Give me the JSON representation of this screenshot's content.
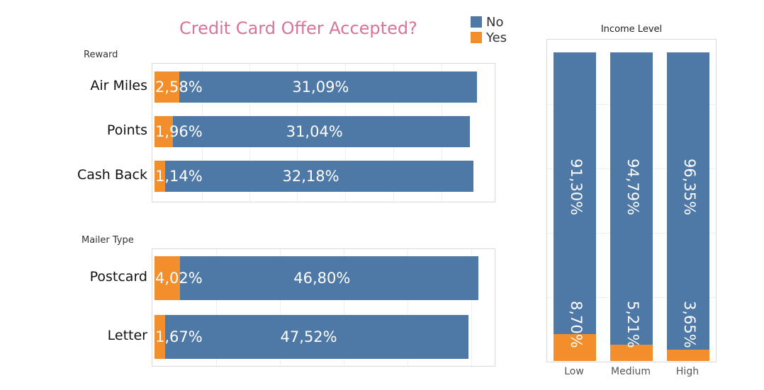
{
  "title": "Credit Card Offer Accepted?",
  "legend": [
    {
      "label": "No",
      "color": "#4e79a7"
    },
    {
      "label": "Yes",
      "color": "#f28e2b"
    }
  ],
  "reward_label": "Reward",
  "mailer_label": "Mailer Type",
  "income_label": "Income Level",
  "chart_data": [
    {
      "type": "bar",
      "orientation": "horizontal",
      "stacked": true,
      "panel": "Reward",
      "categories": [
        "Air Miles",
        "Points",
        "Cash Back"
      ],
      "series": [
        {
          "name": "Yes",
          "values": [
            2.58,
            1.96,
            1.14
          ],
          "labels": [
            "2,58%",
            "1,96%",
            "1,14%"
          ]
        },
        {
          "name": "No",
          "values": [
            31.09,
            31.04,
            32.18
          ],
          "labels": [
            "31,09%",
            "31,04%",
            "32,18%"
          ]
        }
      ]
    },
    {
      "type": "bar",
      "orientation": "horizontal",
      "stacked": true,
      "panel": "Mailer Type",
      "categories": [
        "Postcard",
        "Letter"
      ],
      "series": [
        {
          "name": "Yes",
          "values": [
            4.02,
            1.67
          ],
          "labels": [
            "4,02%",
            "1,67%"
          ]
        },
        {
          "name": "No",
          "values": [
            46.8,
            47.52
          ],
          "labels": [
            "46,80%",
            "47,52%"
          ]
        }
      ]
    },
    {
      "type": "bar",
      "orientation": "vertical",
      "stacked": true,
      "panel": "Income Level",
      "categories": [
        "Low",
        "Medium",
        "High"
      ],
      "series": [
        {
          "name": "Yes",
          "values": [
            8.7,
            5.21,
            3.65
          ],
          "labels": [
            "8,70%",
            "5,21%",
            "3,65%"
          ]
        },
        {
          "name": "No",
          "values": [
            91.3,
            94.79,
            96.35
          ],
          "labels": [
            "91,30%",
            "94,79%",
            "96,35%"
          ]
        }
      ],
      "ylim": [
        0,
        100
      ]
    }
  ]
}
